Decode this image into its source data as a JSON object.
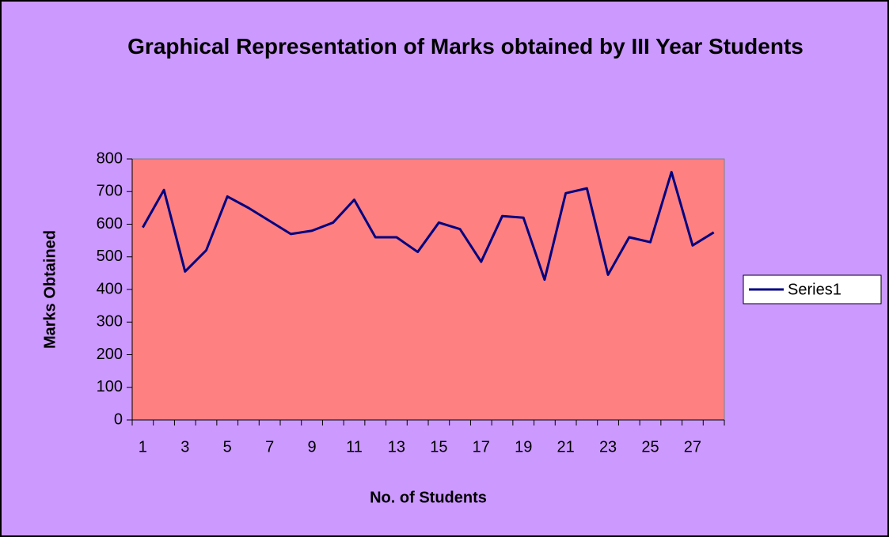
{
  "chart_data": {
    "type": "line",
    "title": "Graphical Representation of Marks obtained by III Year Students",
    "xlabel": "No. of Students",
    "ylabel": "Marks Obtained",
    "categories": [
      1,
      null,
      3,
      null,
      5,
      null,
      7,
      null,
      9,
      null,
      11,
      null,
      13,
      null,
      15,
      null,
      17,
      null,
      19,
      null,
      21,
      null,
      23,
      null,
      25,
      null,
      27,
      null
    ],
    "series": [
      {
        "name": "Series1",
        "color": "#000080",
        "values": [
          590,
          705,
          455,
          520,
          685,
          650,
          610,
          570,
          580,
          605,
          675,
          560,
          560,
          515,
          605,
          585,
          485,
          625,
          620,
          430,
          695,
          710,
          445,
          560,
          545,
          760,
          535,
          575
        ]
      }
    ],
    "ylim": [
      0,
      800
    ],
    "yticks": [
      0,
      100,
      200,
      300,
      400,
      500,
      600,
      700,
      800
    ],
    "legend": "right",
    "background": "#cc99ff",
    "plot_background": "#ff8080"
  }
}
